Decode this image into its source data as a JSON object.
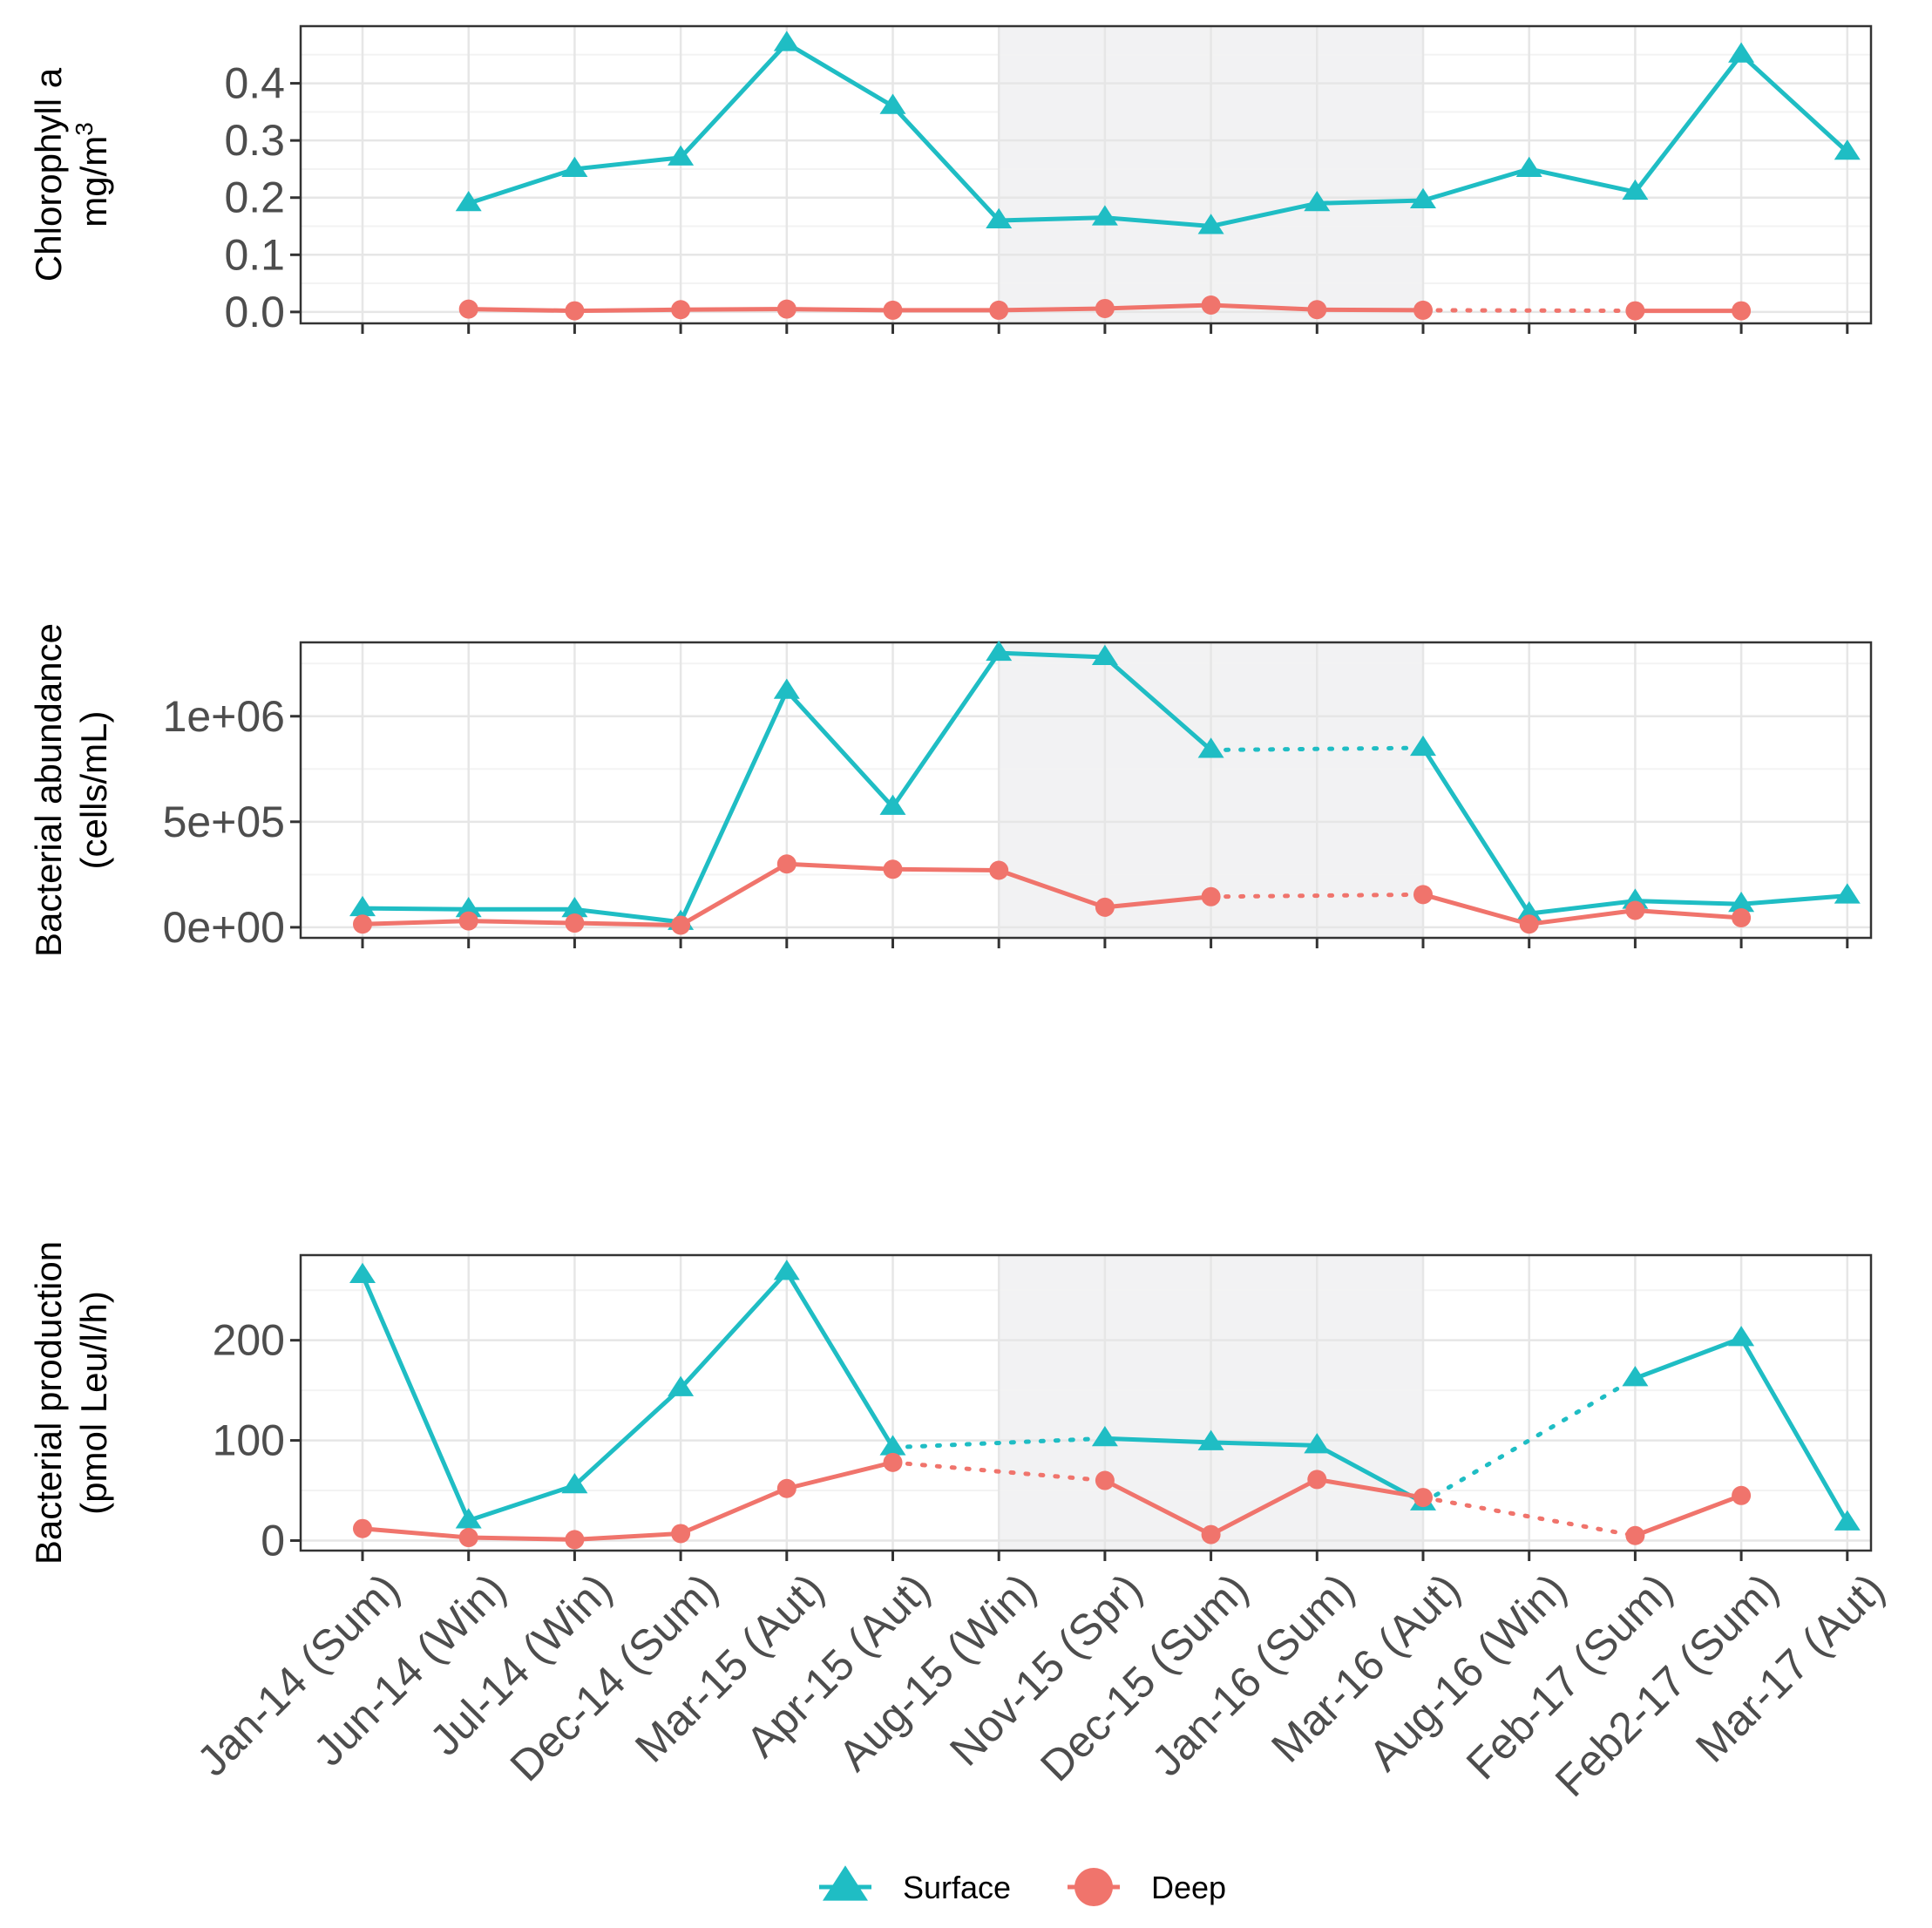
{
  "chart_data": [
    {
      "type": "line",
      "panel": "chlorophyll",
      "ylabel_lines": [
        "Chlorophyll a",
        "mg/m"
      ],
      "ylabel_superscript": "3",
      "ylim": [
        -0.02,
        0.5
      ],
      "yticks": [
        0.0,
        0.1,
        0.2,
        0.3,
        0.4
      ],
      "ytick_labels": [
        "0.0",
        "0.1",
        "0.2",
        "0.3",
        "0.4"
      ],
      "shaded_range": [
        "Aug-15 (Win)",
        "Mar-16 (Aut)"
      ],
      "series": [
        {
          "name": "Surface",
          "values": [
            null,
            0.19,
            0.25,
            0.27,
            0.47,
            0.36,
            0.16,
            0.165,
            0.15,
            0.19,
            0.195,
            0.25,
            0.21,
            0.45,
            0.28
          ],
          "dotted_gaps": []
        },
        {
          "name": "Deep",
          "values": [
            null,
            0.005,
            0.002,
            0.004,
            0.005,
            0.003,
            0.003,
            0.006,
            0.012,
            0.004,
            0.003,
            null,
            0.002,
            0.002,
            null
          ],
          "dotted_gaps": [
            [
              10,
              12
            ]
          ]
        }
      ]
    },
    {
      "type": "line",
      "panel": "bacterial_abundance",
      "ylabel_lines": [
        "Bacterial abundance",
        "(cells/mL)"
      ],
      "ylim": [
        -50000,
        1350000
      ],
      "yticks": [
        0,
        500000,
        1000000
      ],
      "ytick_labels": [
        "0e+00",
        "5e+05",
        "1e+06"
      ],
      "shaded_range": [
        "Aug-15 (Win)",
        "Mar-16 (Aut)"
      ],
      "series": [
        {
          "name": "Surface",
          "values": [
            90000,
            85000,
            85000,
            25000,
            1120000,
            570000,
            1300000,
            1280000,
            840000,
            null,
            850000,
            65000,
            125000,
            110000,
            150000
          ],
          "dotted_gaps": [
            [
              8,
              10
            ]
          ]
        },
        {
          "name": "Deep",
          "values": [
            15000,
            30000,
            20000,
            10000,
            300000,
            275000,
            270000,
            95000,
            145000,
            null,
            155000,
            15000,
            80000,
            45000,
            null
          ],
          "dotted_gaps": [
            [
              8,
              10
            ]
          ]
        }
      ]
    },
    {
      "type": "line",
      "panel": "bacterial_production",
      "ylabel_lines": [
        "Bacterial production",
        "(pmol Leu/l/h)"
      ],
      "ylim": [
        -10,
        285
      ],
      "yticks": [
        0,
        100,
        200
      ],
      "ytick_labels": [
        "0",
        "100",
        "200"
      ],
      "shaded_range": [
        "Aug-15 (Win)",
        "Mar-16 (Aut)"
      ],
      "series": [
        {
          "name": "Surface",
          "values": [
            265,
            20,
            55,
            152,
            268,
            93,
            null,
            102,
            98,
            95,
            38,
            null,
            162,
            202,
            18
          ],
          "dotted_gaps": [
            [
              5,
              7
            ],
            [
              10,
              12
            ]
          ]
        },
        {
          "name": "Deep",
          "values": [
            12,
            3,
            1,
            7,
            52,
            78,
            null,
            60,
            6,
            61,
            43,
            null,
            5,
            45,
            null
          ],
          "dotted_gaps": [
            [
              5,
              7
            ],
            [
              10,
              12
            ]
          ]
        }
      ]
    }
  ],
  "categories": [
    "Jan-14 (Sum)",
    "Jun-14 (Win)",
    "Jul-14 (Win)",
    "Dec-14 (Sum)",
    "Mar-15 (Aut)",
    "Apr-15 (Aut)",
    "Aug-15 (Win)",
    "Nov-15 (Spr)",
    "Dec-15 (Sum)",
    "Jan-16 (Sum)",
    "Mar-16 (Aut)",
    "Aug-16 (Win)",
    "Feb-17 (Sum)",
    "Feb2-17 (Sum)",
    "Mar-17 (Aut)"
  ],
  "legend": {
    "items": [
      {
        "name": "Surface",
        "marker": "triangle",
        "color": "#1fbdc4"
      },
      {
        "name": "Deep",
        "marker": "circle",
        "color": "#f0746c"
      }
    ]
  },
  "colors": {
    "surface": "#1fbdc4",
    "deep": "#f0746c",
    "shade": "#f2f2f3",
    "grid_major": "#e6e6e6",
    "grid_minor": "#f3f3f3",
    "frame": "#333333"
  }
}
